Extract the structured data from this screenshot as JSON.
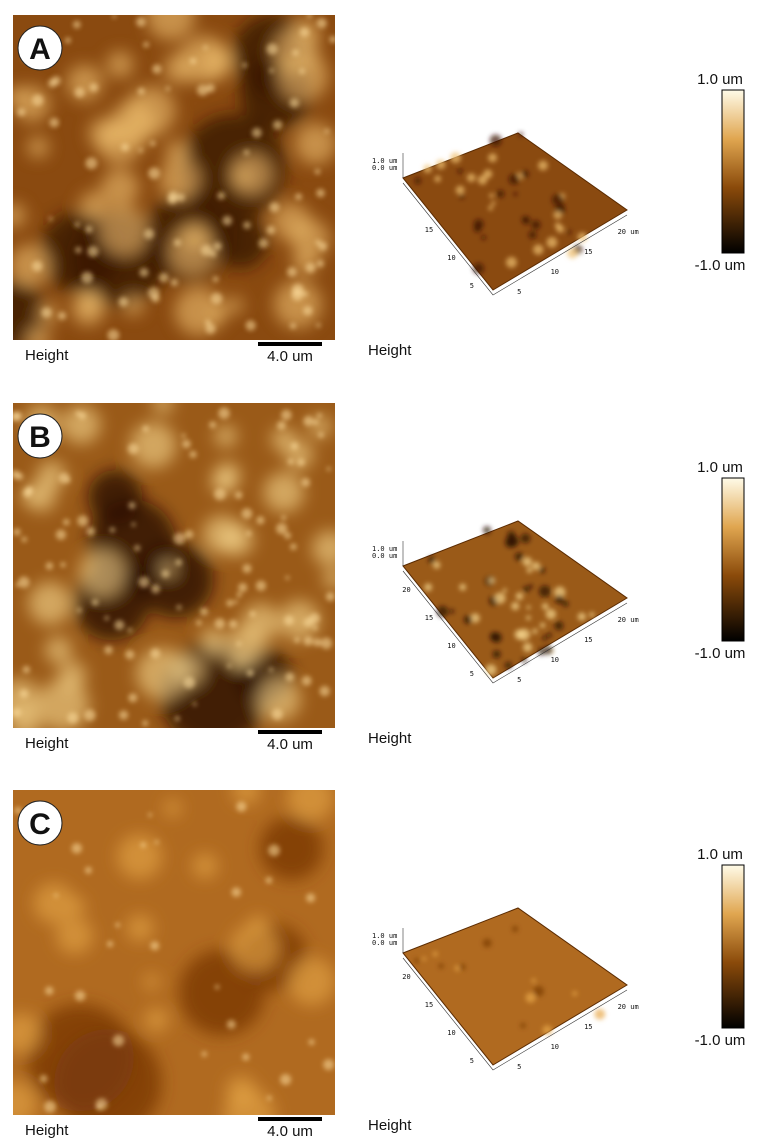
{
  "panels": [
    {
      "label": "A",
      "image_caption": "Height",
      "scale_bar": "4.0 um",
      "surface_caption": "Height",
      "surface_z_ticks": [
        "1.0 um",
        "0.0 um"
      ],
      "surface_y_ticks": [
        "15",
        "10",
        "5"
      ],
      "surface_x_ticks": [
        "5",
        "10",
        "15",
        "20 um"
      ],
      "colorbar_max": "1.0 um",
      "colorbar_min": "-1.0 um"
    },
    {
      "label": "B",
      "image_caption": "Height",
      "scale_bar": "4.0 um",
      "surface_caption": "Height",
      "surface_z_ticks": [
        "1.0 um",
        "0.0 um"
      ],
      "surface_y_ticks": [
        "20",
        "15",
        "10",
        "5"
      ],
      "surface_x_ticks": [
        "5",
        "10",
        "15",
        "20 um"
      ],
      "colorbar_max": "1.0 um",
      "colorbar_min": "-1.0 um"
    },
    {
      "label": "C",
      "image_caption": "Height",
      "scale_bar": "4.0 um",
      "surface_caption": "Height",
      "surface_z_ticks": [
        "1.0 um",
        "0.0 um"
      ],
      "surface_y_ticks": [
        "20",
        "15",
        "10",
        "5"
      ],
      "surface_x_ticks": [
        "5",
        "10",
        "15",
        "20 um"
      ],
      "colorbar_max": "1.0 um",
      "colorbar_min": "-1.0 um"
    }
  ]
}
